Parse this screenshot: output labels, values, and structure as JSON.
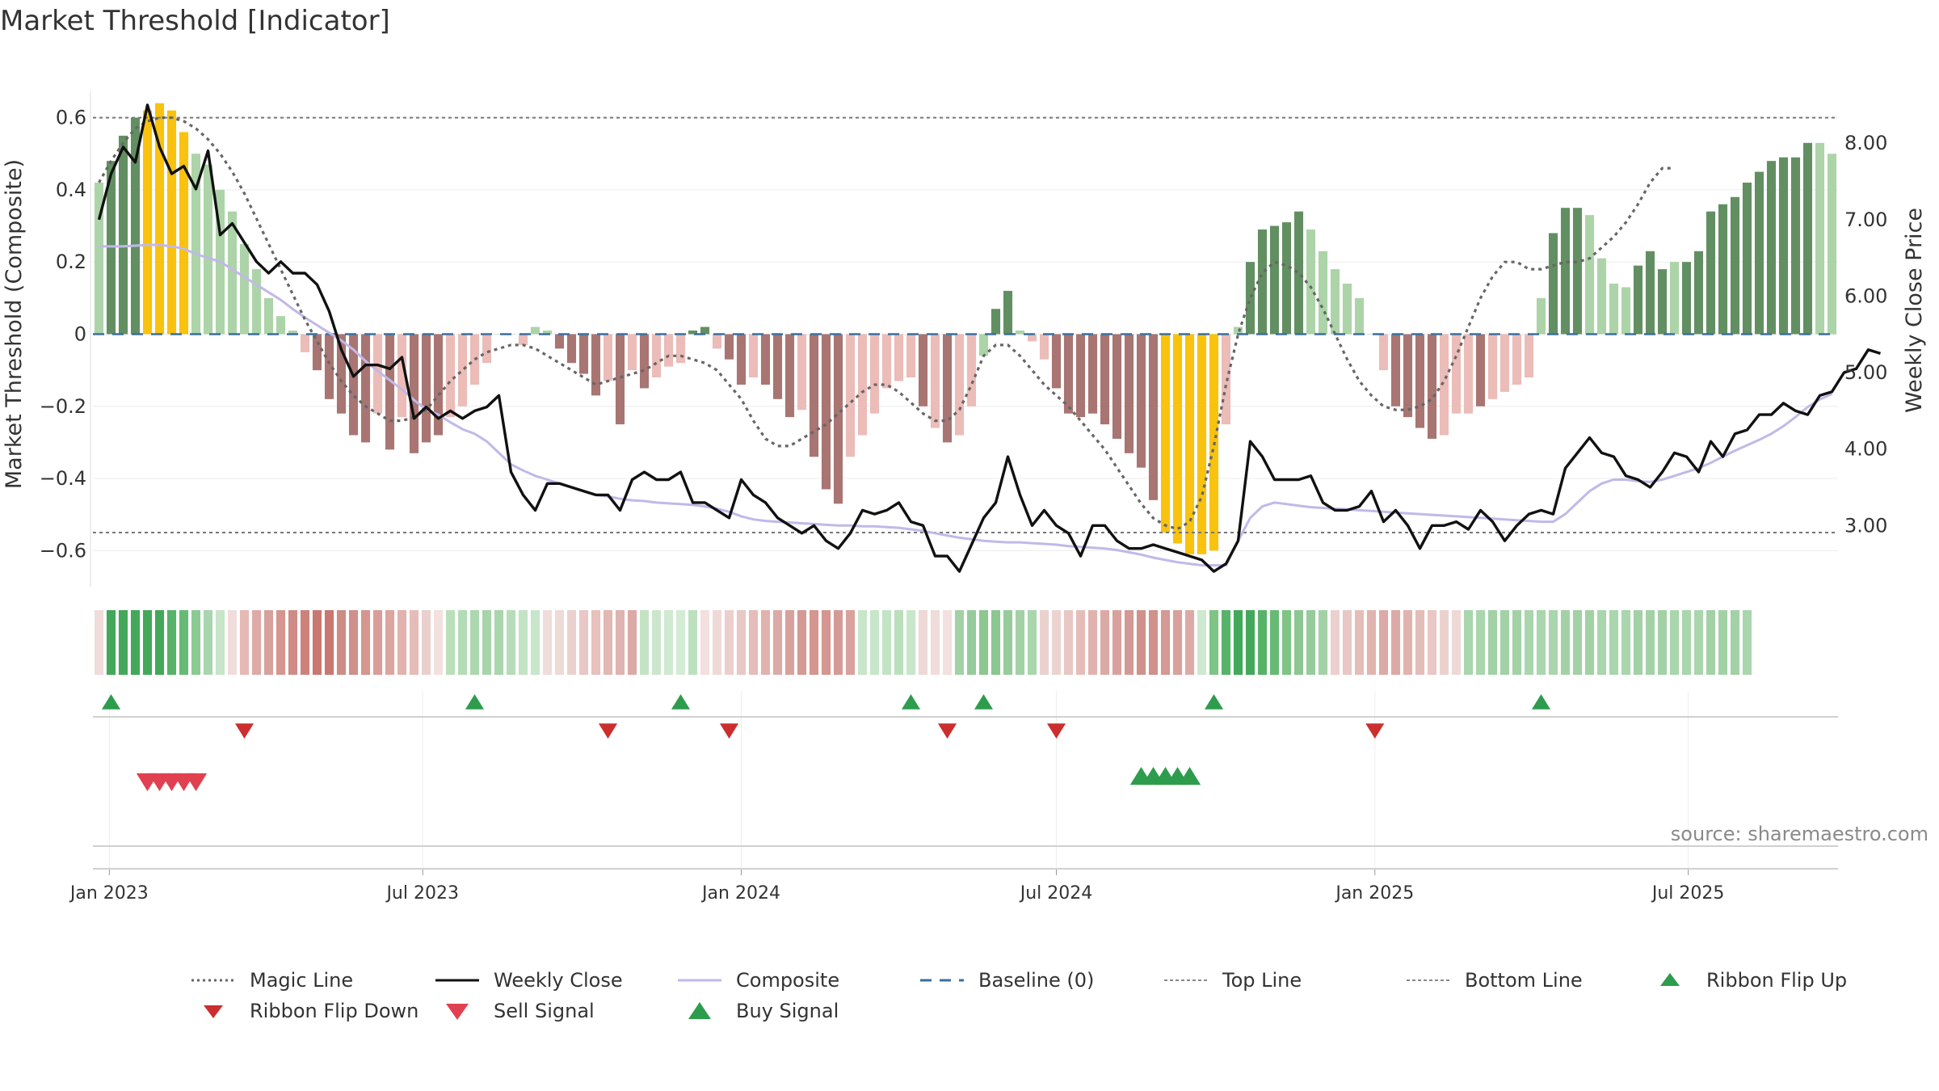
{
  "title": "Market Threshold [Indicator]",
  "source": "source: sharemaestro.com",
  "colors": {
    "strong_pos": "#628f62",
    "weak_pos": "#acd4a8",
    "strong_neg": "#a87572",
    "weak_neg": "#ebbcb8",
    "extreme": "#f9c20e",
    "close": "#111111",
    "composite": "#c2b8e8",
    "magic": "#666666",
    "baseline": "#3a6fa0",
    "threshold": "#777777",
    "signal_up": "#2e9c4d",
    "signal_down": "#cc2e2e",
    "sell": "#e04050"
  },
  "chart_data": {
    "type": "bar",
    "x_start": "2022-12-26",
    "x_step_days": 7,
    "left_axis": {
      "label": "Market Threshold (Composite)",
      "range": [
        -0.7,
        0.72
      ],
      "ticks": [
        0.6,
        0.4,
        0.2,
        0,
        -0.2,
        -0.4,
        -0.6
      ],
      "tick_labels": [
        "0.6",
        "0.4",
        "0.2",
        "0",
        "−0.2",
        "−0.4",
        "−0.6"
      ]
    },
    "right_axis": {
      "label": "Weekly Close Price",
      "range": [
        2.2,
        8.9
      ],
      "ticks": [
        8,
        7,
        6,
        5,
        4,
        3
      ],
      "tick_labels": [
        "8.00",
        "7.00",
        "6.00",
        "5.00",
        "4.00",
        "3.00"
      ]
    },
    "x_ticks": [
      {
        "date": "2023-01-01",
        "label": "Jan 2023"
      },
      {
        "date": "2023-07-01",
        "label": "Jul 2023"
      },
      {
        "date": "2024-01-01",
        "label": "Jan 2024"
      },
      {
        "date": "2024-07-01",
        "label": "Jul 2024"
      },
      {
        "date": "2025-01-01",
        "label": "Jan 2025"
      },
      {
        "date": "2025-07-01",
        "label": "Jul 2025"
      }
    ],
    "top_line": 0.6,
    "bottom_line": -0.55,
    "baseline": 0,
    "composite": [
      0.42,
      0.48,
      0.55,
      0.6,
      0.62,
      0.64,
      0.62,
      0.56,
      0.5,
      0.47,
      0.4,
      0.34,
      0.25,
      0.18,
      0.1,
      0.05,
      0.01,
      -0.05,
      -0.1,
      -0.18,
      -0.22,
      -0.28,
      -0.3,
      -0.22,
      -0.32,
      -0.23,
      -0.33,
      -0.3,
      -0.28,
      -0.23,
      -0.2,
      -0.14,
      -0.08,
      0.0,
      0.0,
      -0.03,
      0.02,
      0.01,
      -0.04,
      -0.08,
      -0.11,
      -0.17,
      -0.13,
      -0.25,
      -0.1,
      -0.15,
      -0.12,
      -0.09,
      -0.08,
      0.01,
      0.02,
      -0.04,
      -0.07,
      -0.14,
      -0.12,
      -0.14,
      -0.18,
      -0.23,
      -0.21,
      -0.34,
      -0.43,
      -0.47,
      -0.34,
      -0.28,
      -0.22,
      -0.15,
      -0.13,
      -0.12,
      -0.2,
      -0.26,
      -0.3,
      -0.28,
      -0.2,
      -0.06,
      0.07,
      0.12,
      0.01,
      -0.02,
      -0.07,
      -0.15,
      -0.22,
      -0.23,
      -0.22,
      -0.25,
      -0.29,
      -0.33,
      -0.37,
      -0.46,
      -0.55,
      -0.58,
      -0.61,
      -0.61,
      -0.6,
      -0.25,
      0.02,
      0.2,
      0.29,
      0.3,
      0.31,
      0.34,
      0.29,
      0.23,
      0.18,
      0.14,
      0.1,
      0.0,
      -0.1,
      -0.2,
      -0.23,
      -0.26,
      -0.29,
      -0.28,
      -0.22,
      -0.22,
      -0.2,
      -0.18,
      -0.16,
      -0.14,
      -0.12,
      0.1,
      0.28,
      0.35,
      0.35,
      0.33,
      0.21,
      0.14,
      0.13,
      0.19,
      0.23,
      0.18,
      0.2,
      0.2,
      0.23,
      0.34,
      0.36,
      0.38,
      0.42,
      0.45,
      0.48,
      0.49,
      0.49,
      0.53,
      0.53,
      0.5
    ],
    "regime": [
      "wp",
      "sp",
      "sp",
      "sp",
      "ex",
      "ex",
      "ex",
      "ex",
      "wp",
      "wp",
      "wp",
      "wp",
      "wp",
      "wp",
      "wp",
      "wp",
      "wp",
      "wn",
      "sn",
      "sn",
      "sn",
      "sn",
      "sn",
      "wn",
      "sn",
      "wn",
      "sn",
      "sn",
      "sn",
      "wn",
      "wn",
      "wn",
      "wn",
      "wp",
      "wp",
      "wn",
      "wp",
      "wp",
      "sn",
      "sn",
      "sn",
      "sn",
      "wn",
      "sn",
      "wn",
      "sn",
      "wn",
      "wn",
      "wn",
      "sp",
      "sp",
      "wn",
      "sn",
      "sn",
      "wn",
      "sn",
      "sn",
      "sn",
      "wn",
      "sn",
      "sn",
      "sn",
      "wn",
      "wn",
      "wn",
      "wn",
      "wn",
      "wn",
      "sn",
      "wn",
      "sn",
      "wn",
      "wn",
      "wp",
      "sp",
      "sp",
      "wp",
      "wn",
      "wn",
      "sn",
      "sn",
      "sn",
      "sn",
      "sn",
      "sn",
      "sn",
      "sn",
      "sn",
      "ex",
      "ex",
      "ex",
      "ex",
      "ex",
      "wn",
      "wp",
      "sp",
      "sp",
      "sp",
      "sp",
      "sp",
      "wp",
      "wp",
      "wp",
      "wp",
      "wp",
      "wp",
      "wn",
      "sn",
      "sn",
      "sn",
      "sn",
      "wn",
      "wn",
      "wn",
      "sn",
      "wn",
      "wn",
      "wn",
      "wn",
      "wp",
      "sp",
      "sp",
      "sp",
      "wp",
      "wp",
      "wp",
      "wp",
      "sp",
      "sp",
      "sp",
      "wp",
      "sp",
      "sp",
      "sp",
      "sp",
      "sp",
      "sp",
      "sp",
      "sp",
      "sp",
      "sp",
      "sp",
      "wp"
    ],
    "magic_line": [
      0.42,
      0.48,
      0.53,
      0.57,
      0.59,
      0.6,
      0.6,
      0.59,
      0.57,
      0.54,
      0.5,
      0.45,
      0.39,
      0.32,
      0.25,
      0.18,
      0.11,
      0.04,
      -0.02,
      -0.08,
      -0.13,
      -0.17,
      -0.2,
      -0.22,
      -0.24,
      -0.24,
      -0.23,
      -0.21,
      -0.17,
      -0.13,
      -0.1,
      -0.07,
      -0.05,
      -0.04,
      -0.03,
      -0.03,
      -0.04,
      -0.06,
      -0.08,
      -0.1,
      -0.12,
      -0.14,
      -0.13,
      -0.12,
      -0.11,
      -0.1,
      -0.08,
      -0.06,
      -0.06,
      -0.07,
      -0.08,
      -0.1,
      -0.14,
      -0.18,
      -0.24,
      -0.29,
      -0.31,
      -0.31,
      -0.29,
      -0.27,
      -0.25,
      -0.22,
      -0.19,
      -0.16,
      -0.14,
      -0.14,
      -0.16,
      -0.19,
      -0.22,
      -0.24,
      -0.24,
      -0.21,
      -0.14,
      -0.06,
      -0.03,
      -0.03,
      -0.06,
      -0.1,
      -0.14,
      -0.17,
      -0.2,
      -0.24,
      -0.28,
      -0.32,
      -0.37,
      -0.42,
      -0.47,
      -0.51,
      -0.53,
      -0.54,
      -0.52,
      -0.45,
      -0.31,
      -0.14,
      0.0,
      0.1,
      0.17,
      0.2,
      0.19,
      0.17,
      0.13,
      0.07,
      0.0,
      -0.07,
      -0.13,
      -0.17,
      -0.2,
      -0.21,
      -0.21,
      -0.2,
      -0.18,
      -0.13,
      -0.06,
      0.02,
      0.1,
      0.16,
      0.2,
      0.2,
      0.18,
      0.18,
      0.19,
      0.2,
      0.2,
      0.21,
      0.24,
      0.27,
      0.31,
      0.36,
      0.42,
      0.46,
      0.46
    ],
    "weekly_close": [
      7.0,
      7.6,
      7.95,
      7.75,
      8.5,
      7.95,
      7.6,
      7.7,
      7.4,
      7.9,
      6.8,
      6.95,
      6.7,
      6.45,
      6.3,
      6.45,
      6.3,
      6.3,
      6.15,
      5.8,
      5.3,
      4.95,
      5.1,
      5.1,
      5.05,
      5.2,
      4.4,
      4.55,
      4.4,
      4.5,
      4.4,
      4.5,
      4.55,
      4.7,
      3.7,
      3.4,
      3.2,
      3.55,
      3.55,
      3.5,
      3.45,
      3.4,
      3.4,
      3.2,
      3.6,
      3.7,
      3.6,
      3.6,
      3.7,
      3.3,
      3.3,
      3.2,
      3.1,
      3.6,
      3.4,
      3.3,
      3.1,
      3.0,
      2.9,
      3.0,
      2.8,
      2.7,
      2.9,
      3.2,
      3.15,
      3.2,
      3.3,
      3.05,
      3.0,
      2.6,
      2.6,
      2.4,
      2.75,
      3.1,
      3.3,
      3.9,
      3.4,
      3.0,
      3.2,
      3.0,
      2.9,
      2.6,
      3.0,
      3.0,
      2.8,
      2.7,
      2.7,
      2.75,
      2.7,
      2.65,
      2.6,
      2.55,
      2.4,
      2.5,
      2.8,
      4.1,
      3.9,
      3.6,
      3.6,
      3.6,
      3.65,
      3.3,
      3.2,
      3.2,
      3.25,
      3.45,
      3.05,
      3.2,
      3.0,
      2.7,
      3.0,
      3.0,
      3.05,
      2.95,
      3.2,
      3.05,
      2.8,
      3.0,
      3.15,
      3.2,
      3.15,
      3.75,
      3.95,
      4.15,
      3.95,
      3.9,
      3.65,
      3.6,
      3.5,
      3.7,
      3.95,
      3.9,
      3.7,
      4.1,
      3.9,
      4.2,
      4.25,
      4.45,
      4.45,
      4.6,
      4.5,
      4.45,
      4.7,
      4.75,
      5.0,
      5.05,
      5.3,
      5.25
    ],
    "composite_line": [
      6.65,
      6.65,
      6.65,
      6.66,
      6.67,
      6.67,
      6.65,
      6.62,
      6.55,
      6.5,
      6.45,
      6.35,
      6.25,
      6.15,
      6.05,
      5.95,
      5.83,
      5.72,
      5.62,
      5.52,
      5.42,
      5.3,
      5.15,
      5.02,
      4.9,
      4.78,
      4.64,
      4.52,
      4.45,
      4.35,
      4.26,
      4.2,
      4.1,
      3.95,
      3.8,
      3.72,
      3.65,
      3.6,
      3.55,
      3.5,
      3.45,
      3.4,
      3.38,
      3.35,
      3.33,
      3.32,
      3.3,
      3.29,
      3.28,
      3.27,
      3.25,
      3.22,
      3.18,
      3.12,
      3.08,
      3.06,
      3.05,
      3.04,
      3.03,
      3.02,
      3.01,
      3.0,
      3.0,
      2.99,
      2.99,
      2.98,
      2.97,
      2.95,
      2.93,
      2.9,
      2.87,
      2.84,
      2.82,
      2.8,
      2.79,
      2.78,
      2.78,
      2.77,
      2.76,
      2.75,
      2.73,
      2.72,
      2.71,
      2.7,
      2.68,
      2.65,
      2.62,
      2.58,
      2.55,
      2.52,
      2.5,
      2.48,
      2.48,
      2.48,
      2.8,
      3.1,
      3.25,
      3.3,
      3.28,
      3.26,
      3.24,
      3.23,
      3.22,
      3.21,
      3.2,
      3.19,
      3.18,
      3.17,
      3.16,
      3.15,
      3.14,
      3.13,
      3.12,
      3.11,
      3.1,
      3.09,
      3.08,
      3.07,
      3.06,
      3.05,
      3.05,
      3.15,
      3.3,
      3.45,
      3.55,
      3.6,
      3.6,
      3.58,
      3.57,
      3.6,
      3.65,
      3.7,
      3.75,
      3.82,
      3.9,
      3.98,
      4.05,
      4.12,
      4.2,
      4.3,
      4.42,
      4.55,
      4.65,
      4.72
    ],
    "ribbon": [
      "#f0dcdb",
      "#44a85a",
      "#44a85a",
      "#44a85a",
      "#44a85a",
      "#44a85a",
      "#57b369",
      "#67ba75",
      "#8cca94",
      "#a8d5ae",
      "#c8e4c9",
      "#f0dcdb",
      "#e6b9b6",
      "#ddaaa6",
      "#d8a19d",
      "#d4968f",
      "#cf8c86",
      "#cc827b",
      "#c97871",
      "#c97871",
      "#cd8c84",
      "#cf8f8a",
      "#d4968f",
      "#d99e99",
      "#dca5a0",
      "#e2b3ae",
      "#e6bcb8",
      "#ead0cd",
      "#f2e1de",
      "#b9e0bb",
      "#b3dcb6",
      "#acd7af",
      "#a7d4aa",
      "#a9d6ad",
      "#b6dcb9",
      "#c3e3c5",
      "#c8e6c9",
      "#f0dcdb",
      "#eedad7",
      "#ebd1ce",
      "#e8c7c4",
      "#e6c1bd",
      "#e1b8b4",
      "#dfb4b0",
      "#dcaaa6",
      "#c3e3c5",
      "#cbe6cd",
      "#d0e9d1",
      "#d4ebd5",
      "#bde0bf",
      "#f2e1de",
      "#efd9d6",
      "#eccfcc",
      "#e8c7c4",
      "#e4bdb9",
      "#e0b3af",
      "#dcaaa6",
      "#d9a19d",
      "#d49994",
      "#d4968f",
      "#d4968f",
      "#d49b96",
      "#d9a19d",
      "#c8e6c9",
      "#c8e6c9",
      "#c3e3c5",
      "#b9e0bb",
      "#c8e6c9",
      "#eed9d6",
      "#f0dcdb",
      "#f2e1de",
      "#a3d1a6",
      "#96cb9b",
      "#8cc691",
      "#8cc691",
      "#96cb9b",
      "#a3d1a6",
      "#a9d6ad",
      "#ebd1ce",
      "#ecd3d0",
      "#e8c7c4",
      "#e4bdb9",
      "#e0b3af",
      "#dcaaa6",
      "#d9a19d",
      "#d49994",
      "#d0918b",
      "#d0918b",
      "#d49994",
      "#d9a19d",
      "#dcaaa6",
      "#cfe8d0",
      "#7ec485",
      "#57b369",
      "#44a85a",
      "#44a85a",
      "#57b369",
      "#67ba75",
      "#7ec485",
      "#8cc691",
      "#96cb9b",
      "#a3d1a6",
      "#ebd1ce",
      "#e8c7c4",
      "#e4bdb9",
      "#e0b3af",
      "#dcaaa6",
      "#dcaaa6",
      "#e0b3af",
      "#e4bdb9",
      "#e8c7c4",
      "#ebd1ce",
      "#eed9d6",
      "#a9d6ad",
      "#a9d6ad",
      "#a3d1a6",
      "#a3d1a6",
      "#a3d1a6",
      "#a9d6ad",
      "#a9d6ad",
      "#a9d6ad",
      "#a3d1a6",
      "#a3d1a6",
      "#a3d1a6",
      "#a9d6ad",
      "#a9d6ad",
      "#a9d6ad",
      "#a3d1a6",
      "#a3d1a6",
      "#a3d1a6",
      "#a9d6ad",
      "#a9d6ad",
      "#a9d6ad",
      "#a3d1a6",
      "#a3d1a6",
      "#a3d1a6",
      "#a9d6ad"
    ],
    "ribbon_flip_up": [
      "2023-01-02",
      "2023-07-31",
      "2023-11-27",
      "2024-04-08",
      "2024-05-20",
      "2024-09-30",
      "2025-04-07"
    ],
    "ribbon_flip_down": [
      "2023-03-20",
      "2023-10-16",
      "2023-12-25",
      "2024-04-29",
      "2024-07-01",
      "2025-01-01"
    ],
    "sell_signal": [
      "2023-01-23",
      "2023-01-30",
      "2023-02-06",
      "2023-02-13",
      "2023-02-20"
    ],
    "buy_signal": [
      "2024-08-19",
      "2024-08-26",
      "2024-09-02",
      "2024-09-09",
      "2024-09-16"
    ],
    "legend": [
      "Magic Line",
      "Weekly Close",
      "Composite",
      "Baseline (0)",
      "Top Line",
      "Bottom Line",
      "Ribbon Flip Up",
      "Ribbon Flip Down",
      "Sell Signal",
      "Buy Signal"
    ]
  }
}
